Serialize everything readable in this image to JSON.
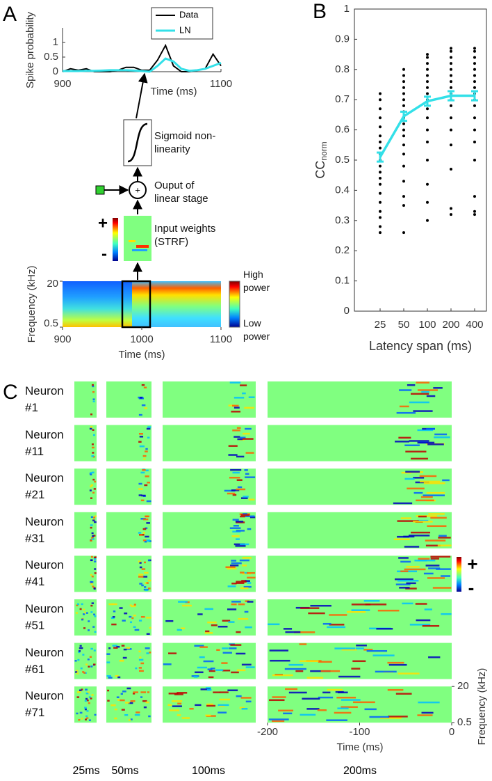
{
  "panel_labels": [
    "A",
    "B",
    "C"
  ],
  "diagram": {
    "stages": [
      "Sigmoid non-linearity",
      "Ouput of linear stage",
      "Input weights (STRF)"
    ],
    "sum_symbol": "+",
    "weight_colorbar_labels": [
      "+",
      "-"
    ]
  },
  "chart_data": [
    {
      "type": "line",
      "ylabel": "Spike probability",
      "xlabel": "Time (ms)",
      "x": [
        900,
        910,
        920,
        930,
        940,
        950,
        960,
        970,
        980,
        990,
        1000,
        1010,
        1020,
        1030,
        1040,
        1050,
        1060,
        1070,
        1080,
        1090,
        1100
      ],
      "series": [
        {
          "name": "Data",
          "color": "#000000",
          "values": [
            0,
            0.1,
            0.05,
            0.1,
            0,
            0,
            0,
            0.05,
            0.15,
            0.15,
            0.05,
            0.05,
            0.4,
            0.9,
            0.2,
            0,
            0,
            0.05,
            0.1,
            0.6,
            0.2
          ]
        },
        {
          "name": "LN",
          "color": "#33e0e8",
          "values": [
            0.02,
            0.02,
            0.02,
            0.03,
            0.03,
            0.04,
            0.05,
            0.05,
            0.05,
            0.04,
            0.02,
            0,
            0.2,
            0.45,
            0.35,
            0.1,
            0.03,
            0.05,
            0.1,
            0.2,
            0.3
          ]
        }
      ],
      "xlim": [
        900,
        1100
      ],
      "xticks": [
        900,
        1100
      ],
      "ylim": [
        0,
        1.5
      ],
      "yticks": [
        0,
        0.5,
        1
      ]
    },
    {
      "type": "heatmap",
      "xlabel": "Time (ms)",
      "ylabel": "Frequency (kHz)",
      "xlim": [
        900,
        1100
      ],
      "xticks": [
        900,
        1000,
        1100
      ],
      "ylim": [
        0.5,
        20
      ],
      "yticks": [
        0.5,
        20
      ],
      "log_y": true,
      "colorbar_labels": [
        "High power",
        "Low power"
      ]
    },
    {
      "type": "scatter",
      "ylabel": "CC",
      "ylabel_subscript": "norm",
      "xlabel": "Latency span (ms)",
      "categories": [
        25,
        50,
        100,
        200,
        400
      ],
      "values": [
        0.51,
        0.645,
        0.695,
        0.713,
        0.713
      ],
      "errors": [
        0.015,
        0.015,
        0.015,
        0.015,
        0.015
      ],
      "color": "#33e0e8",
      "point_color": "#000000",
      "points": [
        [
          0.26,
          0.28,
          0.31,
          0.33,
          0.36,
          0.39,
          0.42,
          0.44,
          0.46,
          0.48,
          0.5,
          0.52,
          0.54,
          0.56,
          0.58,
          0.61,
          0.64,
          0.67,
          0.7,
          0.72
        ],
        [
          0.26,
          0.35,
          0.38,
          0.43,
          0.48,
          0.52,
          0.55,
          0.58,
          0.6,
          0.62,
          0.64,
          0.66,
          0.68,
          0.7,
          0.72,
          0.74,
          0.76,
          0.78,
          0.8
        ],
        [
          0.3,
          0.36,
          0.42,
          0.5,
          0.56,
          0.6,
          0.64,
          0.67,
          0.7,
          0.72,
          0.74,
          0.76,
          0.78,
          0.8,
          0.82,
          0.84,
          0.85
        ],
        [
          0.32,
          0.34,
          0.47,
          0.55,
          0.6,
          0.64,
          0.68,
          0.7,
          0.72,
          0.74,
          0.76,
          0.78,
          0.8,
          0.82,
          0.84,
          0.86,
          0.87
        ],
        [
          0.32,
          0.33,
          0.38,
          0.5,
          0.56,
          0.6,
          0.64,
          0.68,
          0.7,
          0.72,
          0.74,
          0.76,
          0.78,
          0.8,
          0.82,
          0.84,
          0.86,
          0.87
        ]
      ],
      "ylim": [
        0,
        1
      ],
      "yticks": [
        0,
        0.1,
        0.2,
        0.3,
        0.4,
        0.5,
        0.6,
        0.7,
        0.8,
        0.9,
        1
      ]
    },
    {
      "type": "heatmap",
      "xlabel": "Time (ms)",
      "ylabel": "Frequency (kHz)",
      "row_labels": [
        "Neuron #1",
        "Neuron #11",
        "Neuron #21",
        "Neuron #31",
        "Neuron #41",
        "Neuron #51",
        "Neuron #61",
        "Neuron #71"
      ],
      "column_labels": [
        "25ms",
        "50ms",
        "100ms",
        "200ms"
      ],
      "xlim": [
        -200,
        0
      ],
      "xticks": [
        -200,
        -100,
        0
      ],
      "ylim": [
        0.5,
        20
      ],
      "yticks": [
        0.5,
        20
      ],
      "log_y": true,
      "colorbar_labels": [
        "+",
        "-"
      ]
    }
  ]
}
